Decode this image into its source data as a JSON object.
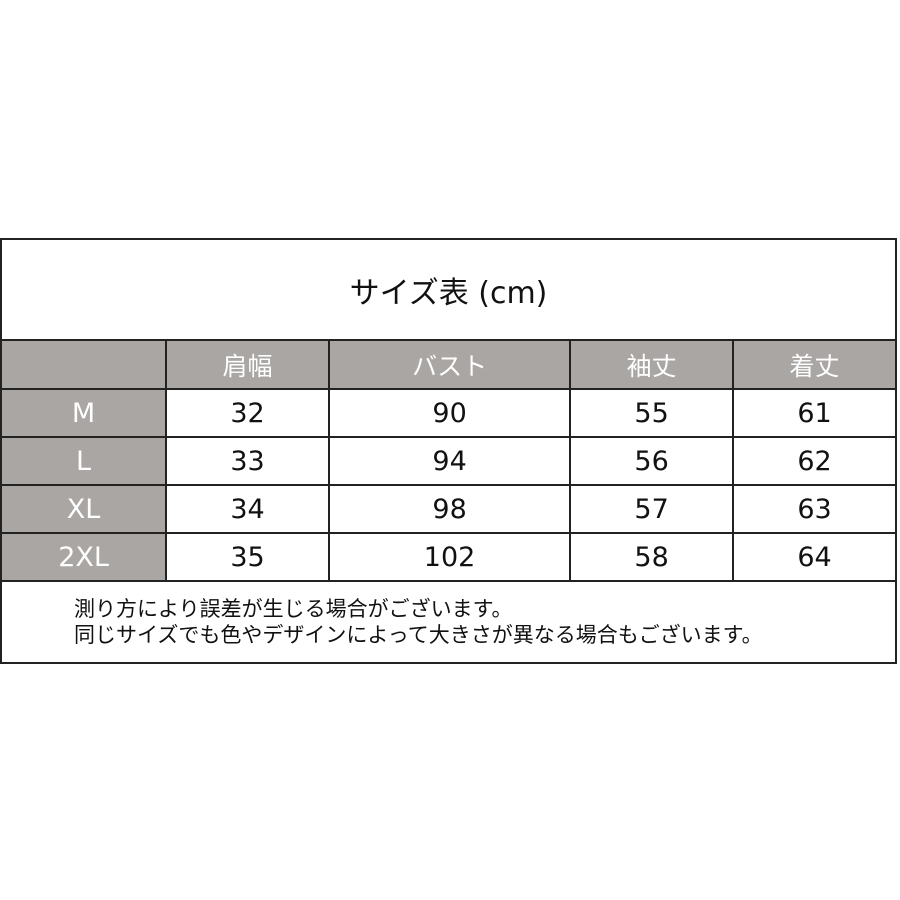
{
  "title": "サイズ表 (cm)",
  "headers": [
    "",
    "肩幅",
    "バスト",
    "袖丈",
    "着丈"
  ],
  "rows": [
    [
      "M",
      "32",
      "90",
      "55",
      "61"
    ],
    [
      "L",
      "33",
      "94",
      "56",
      "62"
    ],
    [
      "XL",
      "34",
      "98",
      "57",
      "63"
    ],
    [
      "2XL",
      "35",
      "102",
      "58",
      "64"
    ]
  ],
  "notes": [
    "測り方により誤差が生じる場合がございます。",
    "同じサイズでも色やデザインによって大きさが異なる場合もございます。"
  ],
  "colors": {
    "header_bg": "#aaa6a4",
    "border": "#222222"
  }
}
